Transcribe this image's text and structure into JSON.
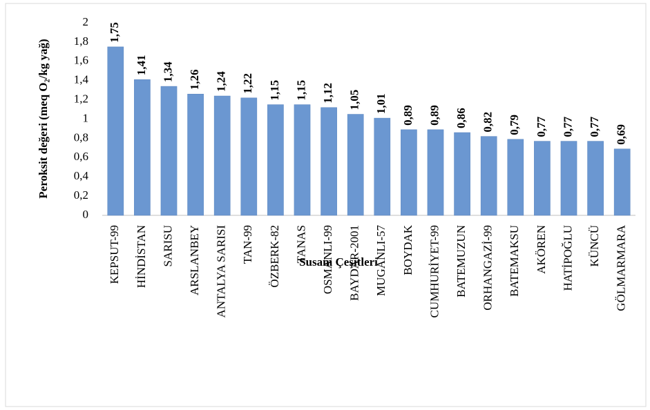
{
  "chart_data": {
    "type": "bar",
    "x_label": "Susam Çeşitleri",
    "y_label": "Peroksit değeri (meq O₂/kg yağ)",
    "categories": [
      "KEPSUT-99",
      "HİNDİSTAN",
      "SARISU",
      "ARSLANBEY",
      "ANTALYA SARISI",
      "TAN-99",
      "ÖZBERK-82",
      "TANAS",
      "OSMANLI-99",
      "BAYDAR-2001",
      "MUGANLI-57",
      "BOYDAK",
      "CUMHURİYET-99",
      "BATEMUZUN",
      "ORHANGAZİ-99",
      "BATEMAKSU",
      "AKÖREN",
      "HATİPOĞLU",
      "KÜNCÜ",
      "GÖLMARMARA"
    ],
    "values": [
      1.75,
      1.41,
      1.34,
      1.26,
      1.24,
      1.22,
      1.15,
      1.15,
      1.12,
      1.05,
      1.01,
      0.89,
      0.89,
      0.86,
      0.82,
      0.79,
      0.77,
      0.77,
      0.77,
      0.69
    ],
    "value_labels": [
      "1,75",
      "1,41",
      "1,34",
      "1,26",
      "1,24",
      "1,22",
      "1,15",
      "1,15",
      "1,12",
      "1,05",
      "1,01",
      "0,89",
      "0,89",
      "0,86",
      "0,82",
      "0,79",
      "0,77",
      "0,77",
      "0,77",
      "0,69"
    ],
    "color": "#6b97d1",
    "ylim": [
      0,
      2
    ],
    "yticks": [
      0,
      {
        "value": 0.2,
        "label": "0,2"
      },
      {
        "value": 0.4,
        "label": "0,4"
      },
      {
        "value": 0.6,
        "label": "0,6"
      },
      {
        "value": 0.8,
        "label": "0,8"
      },
      1,
      {
        "value": 1.2,
        "label": "1,2"
      },
      {
        "value": 1.4,
        "label": "1,4"
      },
      {
        "value": 1.6,
        "label": "1,6"
      },
      {
        "value": 1.8,
        "label": "1,8"
      },
      2
    ],
    "grid": false
  }
}
